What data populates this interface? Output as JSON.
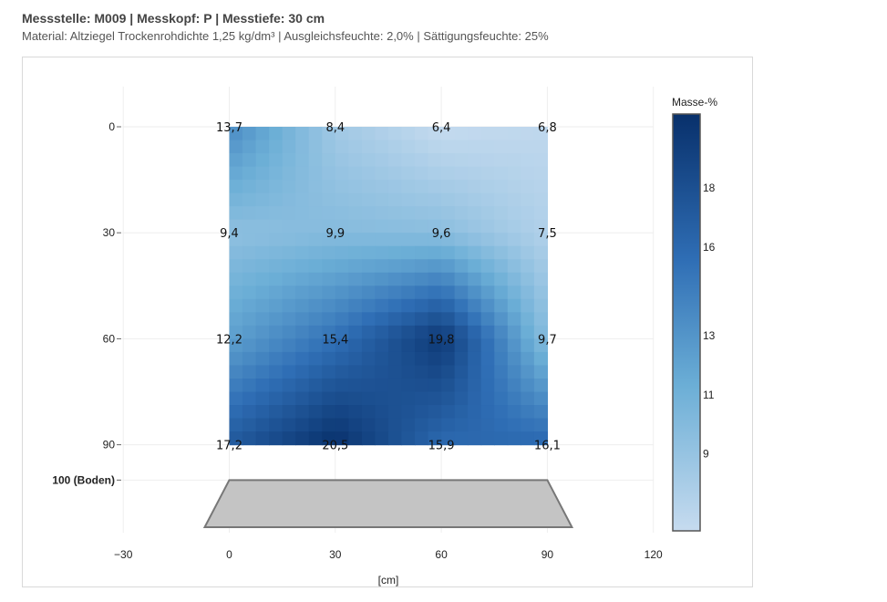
{
  "header": {
    "title": "Messstelle: M009 | Messkopf: P | Messtiefe: 30 cm",
    "subtitle": "Material: Altziegel Trockenrohdichte 1,25 kg/dm³ | Ausgleichsfeuchte: 2,0% | Sättigungsfeuchte: 25%"
  },
  "chart_data": {
    "type": "heatmap",
    "x": [
      0,
      30,
      60,
      90
    ],
    "y": [
      0,
      30,
      60,
      90
    ],
    "values": [
      [
        13.7,
        8.4,
        6.4,
        6.8
      ],
      [
        9.4,
        9.9,
        9.6,
        7.5
      ],
      [
        12.2,
        15.4,
        19.8,
        9.7
      ],
      [
        17.2,
        20.5,
        15.9,
        16.1
      ]
    ],
    "labels": [
      [
        "13,7",
        "8,4",
        "6,4",
        "6,8"
      ],
      [
        "9,4",
        "9,9",
        "9,6",
        "7,5"
      ],
      [
        "12,2",
        "15,4",
        "19,8",
        "9,7"
      ],
      [
        "17,2",
        "20,5",
        "15,9",
        "16,1"
      ]
    ],
    "xlabel": "[cm]",
    "ylabel": "",
    "xlim": [
      -30,
      120
    ],
    "ylim": [
      0,
      100
    ],
    "x_ticks": [
      "−30",
      "0",
      "30",
      "60",
      "90",
      "120"
    ],
    "x_tick_values": [
      -30,
      0,
      30,
      60,
      90,
      120
    ],
    "y_ticks": [
      "0",
      "30",
      "60",
      "90"
    ],
    "y_tick_values": [
      0,
      30,
      60,
      90
    ],
    "floor": {
      "depth": 100,
      "label": "100 (Boden)"
    },
    "colorbar": {
      "title": "Masse-%",
      "min": 6.4,
      "max": 20.5,
      "ticks": [
        9,
        11,
        13,
        16,
        18
      ],
      "colors": [
        "#c6dbef",
        "#08306b"
      ]
    },
    "grid": true,
    "legend_position": "right"
  }
}
